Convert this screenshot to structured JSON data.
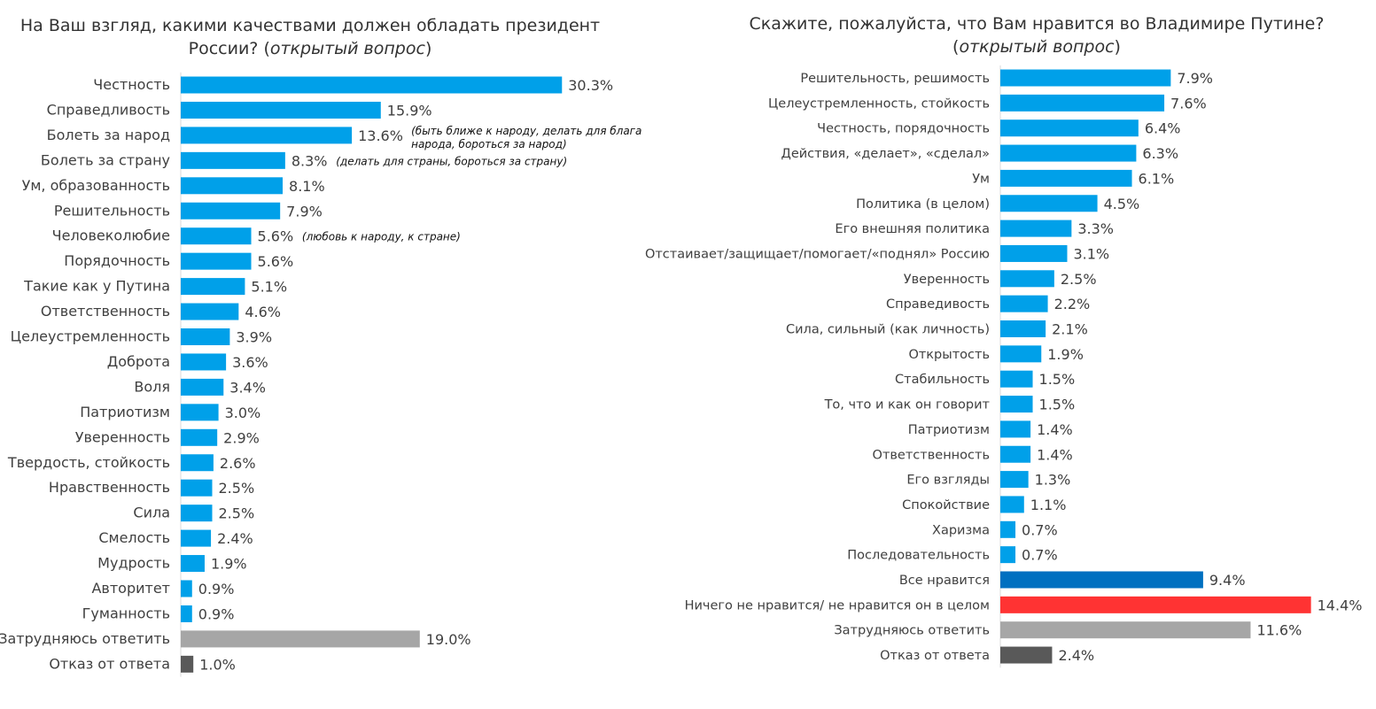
{
  "colors": {
    "default_bar": "#00A0E9",
    "dark_blue_bar": "#0070C0",
    "red_bar": "#FF3333",
    "gray_bar": "#A6A6A6",
    "dark_gray_bar": "#595959",
    "text": "#404040"
  },
  "chart_data": [
    {
      "type": "bar",
      "orientation": "horizontal",
      "title": "На Ваш взгляд, какими качествами должен обладать президент России?",
      "title_note": "открытый вопрос",
      "value_suffix": "%",
      "categories": [
        "Честность",
        "Справедливость",
        "Болеть за народ",
        "Болеть за страну",
        "Ум, образованность",
        "Решительность",
        "Человеколюбие",
        "Порядочность",
        "Такие как у Путина",
        "Ответственность",
        "Целеустремленность",
        "Доброта",
        "Воля",
        "Патриотизм",
        "Уверенность",
        "Твердость, стойкость",
        "Нравственность",
        "Сила",
        "Смелость",
        "Мудрость",
        "Авторитет",
        "Гуманность",
        "Затрудняюсь ответить",
        "Отказ от ответа"
      ],
      "values": [
        30.3,
        15.9,
        13.6,
        8.3,
        8.1,
        7.9,
        5.6,
        5.6,
        5.1,
        4.6,
        3.9,
        3.6,
        3.4,
        3.0,
        2.9,
        2.6,
        2.5,
        2.5,
        2.4,
        1.9,
        0.9,
        0.9,
        19.0,
        1.0
      ],
      "value_labels": [
        "30.3%",
        "15.9%",
        "13.6%",
        "8.3%",
        "8.1%",
        "7.9%",
        "5.6%",
        "5.6%",
        "5.1%",
        "4.6%",
        "3.9%",
        "3.6%",
        "3.4%",
        "3.0%",
        "2.9%",
        "2.6%",
        "2.5%",
        "2.5%",
        "2.4%",
        "1.9%",
        "0.9%",
        "0.9%",
        "19.0%",
        "1.0%"
      ],
      "bar_colors": [
        "default",
        "default",
        "default",
        "default",
        "default",
        "default",
        "default",
        "default",
        "default",
        "default",
        "default",
        "default",
        "default",
        "default",
        "default",
        "default",
        "default",
        "default",
        "default",
        "default",
        "default",
        "default",
        "gray",
        "dark_gray"
      ],
      "annotations": [
        {
          "category_index": 2,
          "lines": [
            "(быть ближе к народу, делать для блага",
            "народа, бороться за народ)"
          ]
        },
        {
          "category_index": 3,
          "lines": [
            "(делать для страны, бороться за страну)"
          ]
        },
        {
          "category_index": 6,
          "lines": [
            "(любовь к народу, к стране)"
          ]
        }
      ]
    },
    {
      "type": "bar",
      "orientation": "horizontal",
      "title": "Скажите, пожалуйста, что Вам нравится во Владимире Путине?",
      "title_note": "открытый вопрос",
      "value_suffix": "%",
      "categories": [
        "Решительность, решимость",
        "Целеустремленность, стойкость",
        "Честность, порядочность",
        "Действия, «делает», «сделал»",
        "Ум",
        "Политика (в целом)",
        "Его внешняя политика",
        "Отстаивает/защищает/помогает/«поднял» Россию",
        "Уверенность",
        "Справедивость",
        "Сила, сильный (как личность)",
        "Открытость",
        "Стабильность",
        "То, что и как он говорит",
        "Патриотизм",
        "Ответственность",
        "Его взгляды",
        "Спокойствие",
        "Харизма",
        "Последовательность",
        "Все нравится",
        "Ничего не нравится/ не нравится он в целом",
        "Затрудняюсь ответить",
        "Отказ от ответа"
      ],
      "values": [
        7.9,
        7.6,
        6.4,
        6.3,
        6.1,
        4.5,
        3.3,
        3.1,
        2.5,
        2.2,
        2.1,
        1.9,
        1.5,
        1.5,
        1.4,
        1.4,
        1.3,
        1.1,
        0.7,
        0.7,
        9.4,
        14.4,
        11.6,
        2.4
      ],
      "value_labels": [
        "7.9%",
        "7.6%",
        "6.4%",
        "6.3%",
        "6.1%",
        "4.5%",
        "3.3%",
        "3.1%",
        "2.5%",
        "2.2%",
        "2.1%",
        "1.9%",
        "1.5%",
        "1.5%",
        "1.4%",
        "1.4%",
        "1.3%",
        "1.1%",
        "0.7%",
        "0.7%",
        "9.4%",
        "14.4%",
        "11.6%",
        "2.4%"
      ],
      "bar_colors": [
        "default",
        "default",
        "default",
        "default",
        "default",
        "default",
        "default",
        "default",
        "default",
        "default",
        "default",
        "default",
        "default",
        "default",
        "default",
        "default",
        "default",
        "default",
        "default",
        "default",
        "dark_blue",
        "red",
        "gray",
        "dark_gray"
      ],
      "annotations": []
    }
  ]
}
